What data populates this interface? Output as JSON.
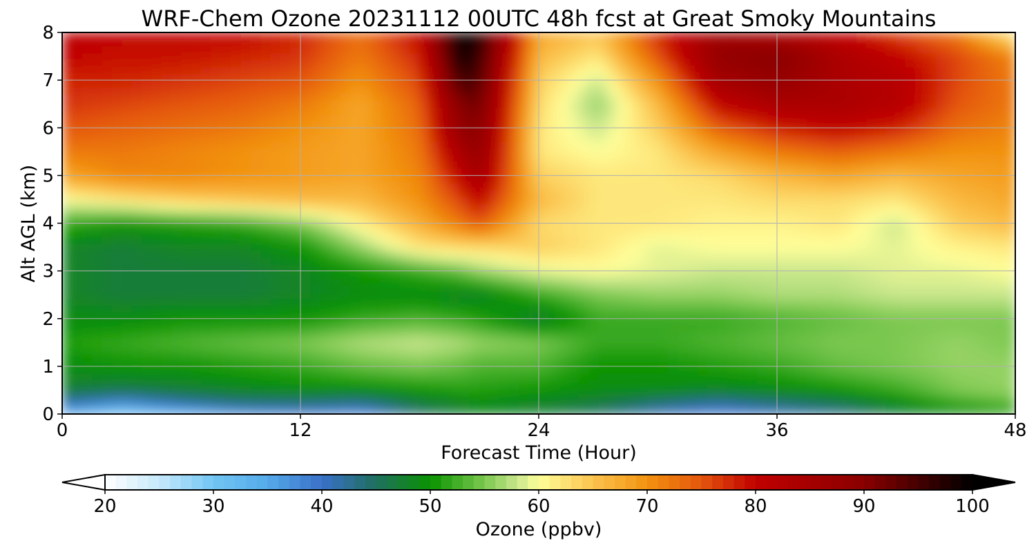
{
  "chart_data": {
    "type": "heatmap",
    "title": "WRF-Chem Ozone  20231112 00UTC 48h fcst at Great Smoky Mountains",
    "xlabel": "Forecast Time (Hour)",
    "ylabel": "Alt AGL (km)",
    "xlim": [
      0,
      48
    ],
    "ylim": [
      0,
      8
    ],
    "xticks": [
      0,
      12,
      24,
      36,
      48
    ],
    "yticks": [
      0,
      1,
      2,
      3,
      4,
      5,
      6,
      7,
      8
    ],
    "grid": true,
    "x_hours": [
      0,
      3,
      6,
      9,
      12,
      15,
      18,
      20,
      21,
      24,
      27,
      30,
      33,
      36,
      39,
      42,
      45,
      48
    ],
    "y_km": [
      0,
      0.25,
      0.5,
      1,
      1.5,
      2,
      2.5,
      3,
      3.5,
      4,
      4.5,
      5,
      5.5,
      6,
      6.5,
      7,
      7.5,
      8
    ],
    "ozone_ppbv": [
      [
        33,
        28,
        32,
        36,
        38,
        37,
        44,
        47,
        48,
        47,
        44,
        40,
        38,
        40,
        42,
        46,
        48,
        50
      ],
      [
        42,
        38,
        42,
        44,
        44,
        43,
        47,
        48,
        49,
        48,
        47,
        44,
        42,
        44,
        46,
        49,
        52,
        54
      ],
      [
        47,
        46,
        47,
        48,
        49,
        49,
        50,
        51,
        51,
        50,
        49,
        49,
        48,
        49,
        50,
        52,
        55,
        56
      ],
      [
        49,
        50,
        50,
        51,
        52,
        54,
        55,
        54,
        53,
        53,
        50,
        50,
        51,
        52,
        54,
        55,
        56,
        56
      ],
      [
        51,
        52,
        53,
        54,
        55,
        57,
        58,
        57,
        56,
        55,
        52,
        52,
        53,
        54,
        55,
        55,
        56,
        55
      ],
      [
        49,
        49,
        50,
        50,
        50,
        52,
        53,
        52,
        51,
        47,
        52,
        52,
        52,
        53,
        54,
        55,
        55,
        55
      ],
      [
        48,
        47,
        47,
        47,
        48,
        49,
        49,
        48,
        48,
        52,
        55,
        56,
        56,
        57,
        57,
        58,
        58,
        58
      ],
      [
        48,
        47,
        47,
        47,
        48,
        50,
        52,
        54,
        56,
        59,
        60,
        59,
        58,
        58,
        58,
        59,
        59,
        60
      ],
      [
        48,
        47,
        48,
        48,
        50,
        56,
        62,
        63,
        63,
        64,
        62,
        59,
        60,
        60,
        60,
        59,
        61,
        62
      ],
      [
        52,
        50,
        51,
        52,
        55,
        61,
        67,
        72,
        75,
        63,
        62,
        62,
        61,
        61,
        62,
        58,
        64,
        66
      ],
      [
        60,
        62,
        64,
        65,
        66,
        66,
        70,
        76,
        80,
        66,
        62,
        62,
        62,
        63,
        63,
        62,
        66,
        68
      ],
      [
        68,
        71,
        71,
        70,
        69,
        68,
        71,
        80,
        85,
        64,
        62,
        62,
        63,
        66,
        68,
        66,
        68,
        69
      ],
      [
        72,
        72,
        71,
        70,
        69,
        68,
        72,
        84,
        88,
        62,
        60,
        62,
        68,
        72,
        74,
        72,
        70,
        70
      ],
      [
        75,
        74,
        73,
        72,
        70,
        68,
        73,
        88,
        90,
        62,
        58,
        64,
        74,
        78,
        80,
        78,
        73,
        71
      ],
      [
        77,
        76,
        75,
        74,
        72,
        68,
        74,
        90,
        92,
        63,
        56,
        66,
        80,
        84,
        84,
        82,
        75,
        72
      ],
      [
        78,
        78,
        77,
        76,
        75,
        70,
        76,
        95,
        94,
        64,
        58,
        70,
        85,
        88,
        84,
        82,
        76,
        72
      ],
      [
        80,
        79,
        79,
        78,
        77,
        72,
        78,
        99,
        96,
        66,
        62,
        75,
        88,
        90,
        84,
        80,
        76,
        71
      ],
      [
        81,
        80,
        80,
        80,
        78,
        73,
        80,
        100,
        98,
        68,
        65,
        78,
        86,
        84,
        80,
        76,
        72,
        60
      ]
    ],
    "colorbar": {
      "label": "Ozone  (ppbv)",
      "ticks": [
        20,
        30,
        40,
        50,
        60,
        70,
        80,
        90,
        100
      ],
      "min": 20,
      "max": 100,
      "extend": "both",
      "under_color": "#ffffff",
      "over_color": "#000000",
      "colors": [
        {
          "v": 20,
          "c": "#ffffff"
        },
        {
          "v": 25,
          "c": "#c6e9fb"
        },
        {
          "v": 30,
          "c": "#71c5f3"
        },
        {
          "v": 35,
          "c": "#55aaea"
        },
        {
          "v": 40,
          "c": "#3a70c8"
        },
        {
          "v": 45,
          "c": "#1f6f5f"
        },
        {
          "v": 50,
          "c": "#0a9300"
        },
        {
          "v": 55,
          "c": "#7cc850"
        },
        {
          "v": 58,
          "c": "#c8e68c"
        },
        {
          "v": 60,
          "c": "#ffff9a"
        },
        {
          "v": 65,
          "c": "#fbc34e"
        },
        {
          "v": 70,
          "c": "#f29210"
        },
        {
          "v": 75,
          "c": "#e4560d"
        },
        {
          "v": 80,
          "c": "#c00000"
        },
        {
          "v": 90,
          "c": "#8a0000"
        },
        {
          "v": 100,
          "c": "#000000"
        }
      ]
    }
  }
}
